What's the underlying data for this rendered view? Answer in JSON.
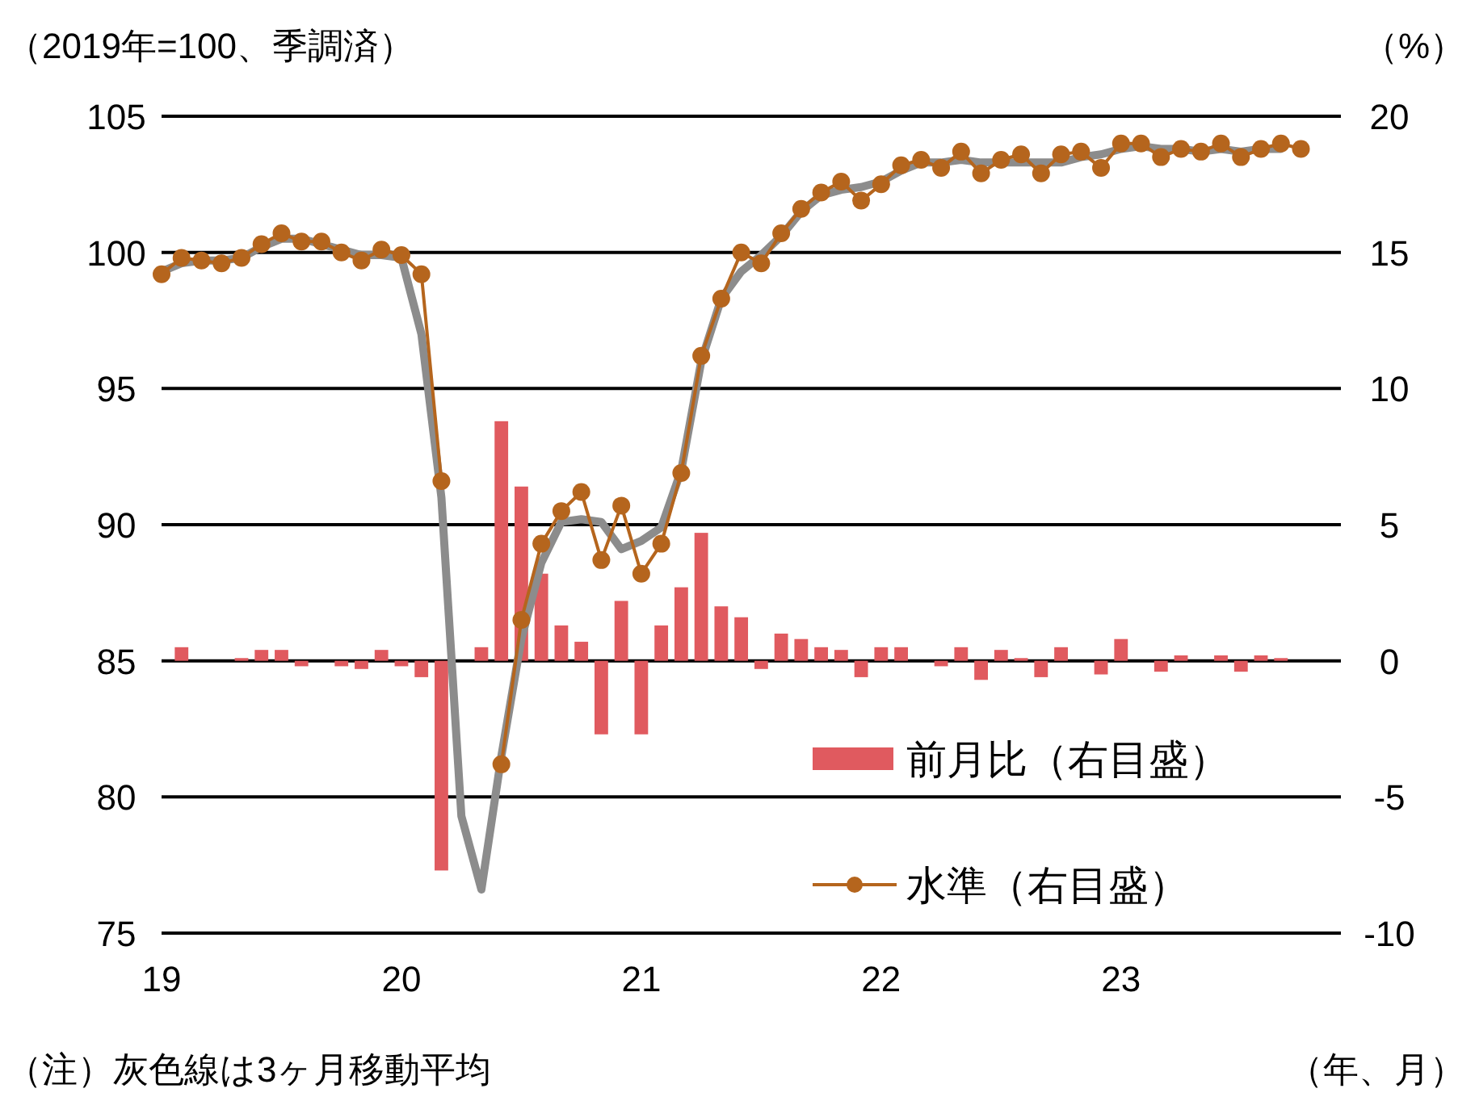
{
  "chart_data": {
    "type": "line",
    "xlabel": "（年、月）",
    "ylabel": "（2019年=100、季調済）",
    "y2label": "（%）",
    "annotations": [
      "（注）灰色線は3ヶ月移動平均"
    ],
    "x": [
      "2019-01",
      "2019-02",
      "2019-03",
      "2019-04",
      "2019-05",
      "2019-06",
      "2019-07",
      "2019-08",
      "2019-09",
      "2019-10",
      "2019-11",
      "2019-12",
      "2020-01",
      "2020-02",
      "2020-03",
      "2020-04",
      "2020-05",
      "2020-06",
      "2020-07",
      "2020-08",
      "2020-09",
      "2020-10",
      "2020-11",
      "2020-12",
      "2021-01",
      "2021-02",
      "2021-03",
      "2021-04",
      "2021-05",
      "2021-06",
      "2021-07",
      "2021-08",
      "2021-09",
      "2021-10",
      "2021-11",
      "2021-12",
      "2022-01",
      "2022-02",
      "2022-03",
      "2022-04",
      "2022-05",
      "2022-06",
      "2022-07",
      "2022-08",
      "2022-09",
      "2022-10",
      "2022-11",
      "2022-12",
      "2023-01",
      "2023-02",
      "2023-03",
      "2023-04",
      "2023-05",
      "2023-06",
      "2023-07",
      "2023-08",
      "2023-09",
      "2023-10"
    ],
    "series": [
      {
        "name": "前月比（右目盛）",
        "type": "bar",
        "axis": "y2",
        "color": "#e05a5f",
        "values": [
          null,
          0.5,
          0,
          0,
          0.1,
          0.4,
          0.4,
          -0.2,
          0,
          -0.2,
          -0.3,
          0.4,
          -0.2,
          -0.6,
          -7.7,
          null,
          0.5,
          8.8,
          6.4,
          3.2,
          1.3,
          0.7,
          -2.7,
          2.2,
          -2.7,
          1.3,
          2.7,
          4.7,
          2.0,
          1.6,
          -0.3,
          1.0,
          0.8,
          0.5,
          0.4,
          -0.6,
          0.5,
          0.5,
          0,
          -0.2,
          0.5,
          -0.7,
          0.4,
          0.1,
          -0.6,
          0.5,
          0,
          -0.5,
          0.8,
          0,
          -0.4,
          0.2,
          0,
          0.2,
          -0.4,
          0.2,
          0.1,
          0
        ]
      },
      {
        "color": "#8c8c8c",
        "marker": "none",
        "values": [
          99.3,
          99.6,
          99.7,
          99.7,
          99.8,
          100.2,
          100.5,
          100.5,
          100.3,
          100.1,
          99.9,
          99.9,
          99.8,
          97.0,
          91.0,
          79.3,
          76.6,
          81.5,
          85.8,
          88.6,
          90.1,
          90.2,
          90.1,
          89.1,
          89.4,
          89.9,
          92.0,
          96.0,
          98.3,
          99.3,
          99.9,
          100.6,
          101.5,
          102.1,
          102.3,
          102.4,
          102.6,
          103.0,
          103.3,
          103.3,
          103.4,
          103.3,
          103.3,
          103.3,
          103.3,
          103.3,
          103.5,
          103.6,
          103.8,
          103.9,
          103.8,
          103.8,
          103.7,
          103.8,
          103.7,
          103.8,
          103.8,
          null
        ]
      },
      {
        "name": "水準（右目盛）",
        "color": "#b5651d",
        "marker": "circle",
        "values": [
          99.2,
          99.8,
          99.7,
          99.6,
          99.8,
          100.3,
          100.7,
          100.4,
          100.4,
          100.0,
          99.7,
          100.1,
          99.9,
          99.2,
          91.6,
          null,
          null,
          81.2,
          86.5,
          89.3,
          90.5,
          91.2,
          88.7,
          90.7,
          88.2,
          89.3,
          91.9,
          96.2,
          98.3,
          100.0,
          99.6,
          100.7,
          101.6,
          102.2,
          102.6,
          101.9,
          102.5,
          103.2,
          103.4,
          103.1,
          103.7,
          102.9,
          103.4,
          103.6,
          102.9,
          103.6,
          103.7,
          103.1,
          104.0,
          104.0,
          103.5,
          103.8,
          103.7,
          104.0,
          103.5,
          103.8,
          104.0,
          103.8
        ]
      }
    ],
    "xlim": [
      "2019-01",
      "2023-12"
    ],
    "xticks": [
      {
        "value": "2019-01",
        "label": "19"
      },
      {
        "value": "2020-01",
        "label": "20"
      },
      {
        "value": "2021-01",
        "label": "21"
      },
      {
        "value": "2022-01",
        "label": "22"
      },
      {
        "value": "2023-01",
        "label": "23"
      }
    ],
    "ylim": [
      75,
      105
    ],
    "yticks": [
      75,
      80,
      85,
      90,
      95,
      100,
      105
    ],
    "y2lim": [
      -10,
      20
    ],
    "y2ticks": [
      -10,
      -5,
      0,
      5,
      10,
      15,
      20
    ],
    "grid": "y",
    "legend": "bottom right"
  }
}
